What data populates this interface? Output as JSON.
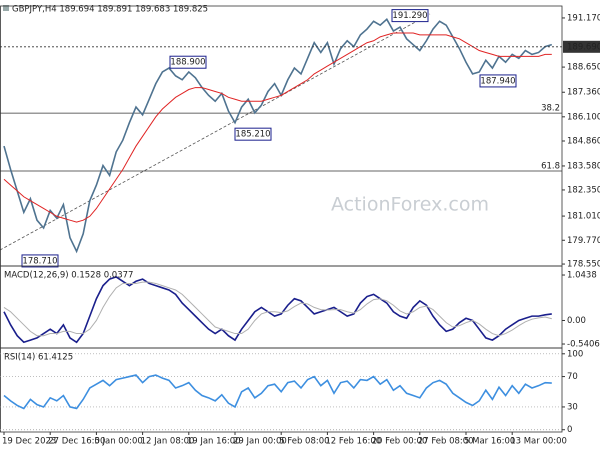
{
  "header": "GBPJPY,H4 189.694 189.891 189.683 189.825",
  "watermark": "ActionForex.com",
  "chart_data": [
    {
      "type": "line",
      "ylim": [
        178.45,
        191.68
      ],
      "yticks": [
        {
          "value": 191.17,
          "label": "191.170"
        },
        {
          "value": 188.65,
          "label": "188.650"
        },
        {
          "value": 187.36,
          "label": "187.360"
        },
        {
          "value": 186.1,
          "label": "186.100"
        },
        {
          "value": 184.86,
          "label": "184.860"
        },
        {
          "value": 183.58,
          "label": "183.580"
        },
        {
          "value": 182.35,
          "label": "182.350"
        },
        {
          "value": 181.01,
          "label": "181.010"
        },
        {
          "value": 179.77,
          "label": "179.770"
        },
        {
          "value": 178.55,
          "label": "178.550"
        }
      ],
      "grid": false,
      "current": {
        "value": 189.69,
        "label": "189.690"
      },
      "levels": [
        {
          "value": 186.29,
          "label": "38.2"
        },
        {
          "value": 183.32,
          "label": "61.8"
        }
      ],
      "annotations": [
        {
          "value": 191.29,
          "label": "191.290"
        },
        {
          "value": 188.9,
          "label": "188.900"
        },
        {
          "value": 185.21,
          "label": "185.210"
        },
        {
          "value": 187.94,
          "label": "187.940"
        },
        {
          "value": 178.71,
          "label": "178.710"
        }
      ],
      "series": [
        {
          "color": "#4f7390",
          "values": [
            184.6,
            183.4,
            182.3,
            181.2,
            181.9,
            180.8,
            180.4,
            181.3,
            180.9,
            181.6,
            179.9,
            179.2,
            180.1,
            181.8,
            182.6,
            183.6,
            183.1,
            184.3,
            184.9,
            185.8,
            186.6,
            186.2,
            187.0,
            187.8,
            188.4,
            188.6,
            188.2,
            188.0,
            188.4,
            188.1,
            187.6,
            187.2,
            186.9,
            187.3,
            186.4,
            185.8,
            186.6,
            187.0,
            186.3,
            186.7,
            187.4,
            187.8,
            187.2,
            188.0,
            188.6,
            188.3,
            189.1,
            189.9,
            189.4,
            189.9,
            188.8,
            189.6,
            190.0,
            189.7,
            190.3,
            190.6,
            191.0,
            190.8,
            191.1,
            190.5,
            190.7,
            190.1,
            189.8,
            189.5,
            190.0,
            190.6,
            191.0,
            190.8,
            190.2,
            189.6,
            188.9,
            188.3,
            188.4,
            189.0,
            188.6,
            189.2,
            188.9,
            189.3,
            189.1,
            189.5,
            189.3,
            189.4,
            189.7,
            189.8
          ]
        },
        {
          "color": "#e02424",
          "values": [
            182.9,
            182.6,
            182.3,
            182.0,
            181.8,
            181.6,
            181.4,
            181.2,
            181.0,
            180.9,
            180.8,
            180.7,
            180.8,
            181.0,
            181.4,
            181.9,
            182.4,
            182.9,
            183.4,
            184.0,
            184.6,
            185.1,
            185.6,
            186.1,
            186.5,
            186.8,
            187.1,
            187.3,
            187.5,
            187.6,
            187.6,
            187.5,
            187.4,
            187.3,
            187.1,
            187.0,
            186.9,
            186.9,
            186.9,
            186.9,
            187.0,
            187.1,
            187.2,
            187.4,
            187.6,
            187.8,
            188.0,
            188.3,
            188.5,
            188.7,
            188.9,
            189.1,
            189.3,
            189.5,
            189.7,
            189.9,
            190.0,
            190.2,
            190.3,
            190.4,
            190.4,
            190.4,
            190.4,
            190.3,
            190.3,
            190.3,
            190.3,
            190.3,
            190.2,
            190.1,
            189.9,
            189.7,
            189.5,
            189.4,
            189.3,
            189.2,
            189.2,
            189.2,
            189.2,
            189.2,
            189.2,
            189.2,
            189.3,
            189.3
          ]
        }
      ]
    },
    {
      "type": "line",
      "title": "MACD(12,26,9) 0.1528 0.0377",
      "ylim": [
        -0.632,
        1.205
      ],
      "yticks": [
        1.0438,
        {
          "value": 0,
          "label": "0.00"
        },
        -0.5406
      ],
      "grid": false,
      "series": [
        {
          "color": "#1a1f8c",
          "values": [
            0.2,
            -0.1,
            -0.35,
            -0.5,
            -0.45,
            -0.4,
            -0.3,
            -0.2,
            -0.3,
            -0.1,
            -0.4,
            -0.5,
            -0.3,
            0.1,
            0.5,
            0.8,
            0.95,
            1.0,
            0.9,
            0.8,
            0.9,
            0.95,
            0.85,
            0.8,
            0.75,
            0.7,
            0.6,
            0.4,
            0.25,
            0.1,
            -0.05,
            -0.2,
            -0.3,
            -0.2,
            -0.35,
            -0.45,
            -0.2,
            0.0,
            0.2,
            0.3,
            0.2,
            0.1,
            0.15,
            0.35,
            0.5,
            0.45,
            0.3,
            0.15,
            0.2,
            0.25,
            0.3,
            0.2,
            0.1,
            0.15,
            0.4,
            0.55,
            0.6,
            0.5,
            0.4,
            0.2,
            0.1,
            0.05,
            0.3,
            0.45,
            0.35,
            0.1,
            -0.1,
            -0.25,
            -0.2,
            -0.05,
            0.05,
            0.0,
            -0.2,
            -0.4,
            -0.45,
            -0.35,
            -0.2,
            -0.1,
            0.0,
            0.05,
            0.1,
            0.1,
            0.13,
            0.15
          ]
        },
        {
          "color": "#b0b0b0",
          "values": [
            0.3,
            0.2,
            0.05,
            -0.1,
            -0.25,
            -0.35,
            -0.35,
            -0.3,
            -0.3,
            -0.25,
            -0.25,
            -0.3,
            -0.3,
            -0.2,
            0.0,
            0.3,
            0.55,
            0.75,
            0.85,
            0.85,
            0.85,
            0.88,
            0.88,
            0.85,
            0.8,
            0.75,
            0.7,
            0.6,
            0.45,
            0.3,
            0.15,
            0.0,
            -0.15,
            -0.2,
            -0.25,
            -0.3,
            -0.3,
            -0.2,
            0.0,
            0.15,
            0.2,
            0.2,
            0.18,
            0.22,
            0.32,
            0.4,
            0.38,
            0.3,
            0.25,
            0.24,
            0.25,
            0.25,
            0.2,
            0.17,
            0.25,
            0.38,
            0.48,
            0.5,
            0.45,
            0.35,
            0.22,
            0.15,
            0.2,
            0.3,
            0.33,
            0.25,
            0.1,
            -0.05,
            -0.15,
            -0.12,
            -0.05,
            0.0,
            -0.08,
            -0.2,
            -0.3,
            -0.35,
            -0.3,
            -0.22,
            -0.12,
            -0.03,
            0.03,
            0.06,
            0.08,
            0.04
          ]
        }
      ]
    },
    {
      "type": "line",
      "title": "RSI(14) 61.4125",
      "ylim": [
        -3,
        105
      ],
      "yticks": [
        100,
        70,
        30,
        0
      ],
      "grid": true,
      "categories": [
        "19 Dec 2023",
        null,
        null,
        null,
        null,
        null,
        null,
        "27 Dec 16:00",
        null,
        null,
        null,
        null,
        null,
        null,
        "5 Jan 00:00",
        null,
        null,
        null,
        null,
        null,
        null,
        "12 Jan 08:00",
        null,
        null,
        null,
        null,
        null,
        null,
        "19 Jan 16:00",
        null,
        null,
        null,
        null,
        null,
        null,
        "29 Jan 00:00",
        null,
        null,
        null,
        null,
        null,
        null,
        "5 Feb 08:00",
        null,
        null,
        null,
        null,
        null,
        null,
        "12 Feb 16:00",
        null,
        null,
        null,
        null,
        null,
        null,
        "20 Feb 00:00",
        null,
        null,
        null,
        null,
        null,
        null,
        "27 Feb 08:00",
        null,
        null,
        null,
        null,
        null,
        null,
        "5 Mar 16:00",
        null,
        null,
        null,
        null,
        null,
        null,
        "13 Mar 00:00",
        null,
        null,
        null,
        null,
        null,
        null
      ],
      "series": [
        {
          "color": "#3d8fe0",
          "values": [
            45,
            38,
            32,
            28,
            40,
            33,
            30,
            42,
            38,
            45,
            30,
            28,
            40,
            55,
            60,
            65,
            58,
            66,
            68,
            70,
            72,
            62,
            70,
            72,
            68,
            65,
            55,
            58,
            62,
            52,
            45,
            42,
            38,
            46,
            35,
            30,
            50,
            55,
            42,
            48,
            58,
            60,
            50,
            62,
            64,
            55,
            66,
            70,
            58,
            65,
            48,
            62,
            64,
            55,
            66,
            65,
            70,
            60,
            66,
            52,
            58,
            48,
            45,
            42,
            55,
            62,
            65,
            60,
            48,
            42,
            36,
            32,
            38,
            52,
            40,
            56,
            45,
            58,
            48,
            60,
            55,
            58,
            62,
            61.4
          ]
        }
      ]
    }
  ]
}
